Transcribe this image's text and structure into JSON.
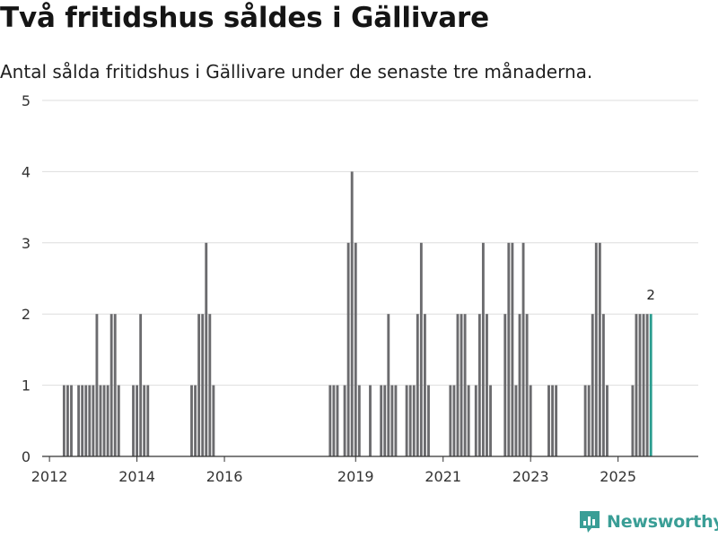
{
  "header": {
    "title": "Två fritidshus såldes i Gällivare",
    "subtitle": "Antal sålda fritidshus i Gällivare under de senaste tre månaderna."
  },
  "brand": {
    "name": "Newsworthy"
  },
  "colors": {
    "bar": "#6b6b6e",
    "highlight": "#2a9d8f",
    "grid": "#dddddd",
    "axis": "#333333",
    "brand": "#3a9e96"
  },
  "chart_data": {
    "type": "bar",
    "title": "Två fritidshus såldes i Gällivare",
    "subtitle": "Antal sålda fritidshus i Gällivare under de senaste tre månaderna.",
    "xlabel": "",
    "ylabel": "",
    "ylim": [
      0,
      5
    ],
    "yticks": [
      "0",
      "1",
      "2",
      "3",
      "4",
      "5"
    ],
    "x_tick_labels": [
      "2012",
      "2014",
      "2016",
      "2019",
      "2021",
      "2023",
      "2025"
    ],
    "x_tick_years": [
      2012,
      2014,
      2016,
      2019,
      2021,
      2023,
      2025
    ],
    "x_start": "2011-11",
    "x_end": "2026-11",
    "series": [
      {
        "name": "Sålda fritidshus",
        "points": [
          [
            "2012-05",
            1
          ],
          [
            "2012-06",
            1
          ],
          [
            "2012-07",
            1
          ],
          [
            "2012-09",
            1
          ],
          [
            "2012-10",
            1
          ],
          [
            "2012-11",
            1
          ],
          [
            "2012-12",
            1
          ],
          [
            "2013-01",
            1
          ],
          [
            "2013-02",
            2
          ],
          [
            "2013-03",
            1
          ],
          [
            "2013-04",
            1
          ],
          [
            "2013-05",
            1
          ],
          [
            "2013-06",
            2
          ],
          [
            "2013-07",
            2
          ],
          [
            "2013-08",
            1
          ],
          [
            "2013-12",
            1
          ],
          [
            "2014-01",
            1
          ],
          [
            "2014-02",
            2
          ],
          [
            "2014-03",
            1
          ],
          [
            "2014-04",
            1
          ],
          [
            "2015-04",
            1
          ],
          [
            "2015-05",
            1
          ],
          [
            "2015-06",
            2
          ],
          [
            "2015-07",
            2
          ],
          [
            "2015-08",
            3
          ],
          [
            "2015-09",
            2
          ],
          [
            "2015-10",
            1
          ],
          [
            "2018-06",
            1
          ],
          [
            "2018-07",
            1
          ],
          [
            "2018-08",
            1
          ],
          [
            "2018-10",
            1
          ],
          [
            "2018-11",
            3
          ],
          [
            "2018-12",
            4
          ],
          [
            "2019-01",
            3
          ],
          [
            "2019-02",
            1
          ],
          [
            "2019-05",
            1
          ],
          [
            "2019-08",
            1
          ],
          [
            "2019-09",
            1
          ],
          [
            "2019-10",
            2
          ],
          [
            "2019-11",
            1
          ],
          [
            "2019-12",
            1
          ],
          [
            "2020-03",
            1
          ],
          [
            "2020-04",
            1
          ],
          [
            "2020-05",
            1
          ],
          [
            "2020-06",
            2
          ],
          [
            "2020-07",
            3
          ],
          [
            "2020-08",
            2
          ],
          [
            "2020-09",
            1
          ],
          [
            "2021-03",
            1
          ],
          [
            "2021-04",
            1
          ],
          [
            "2021-05",
            2
          ],
          [
            "2021-06",
            2
          ],
          [
            "2021-07",
            2
          ],
          [
            "2021-08",
            1
          ],
          [
            "2021-10",
            1
          ],
          [
            "2021-11",
            2
          ],
          [
            "2021-12",
            3
          ],
          [
            "2022-01",
            2
          ],
          [
            "2022-02",
            1
          ],
          [
            "2022-06",
            2
          ],
          [
            "2022-07",
            3
          ],
          [
            "2022-08",
            3
          ],
          [
            "2022-09",
            1
          ],
          [
            "2022-10",
            2
          ],
          [
            "2022-11",
            3
          ],
          [
            "2022-12",
            2
          ],
          [
            "2023-01",
            1
          ],
          [
            "2023-06",
            1
          ],
          [
            "2023-07",
            1
          ],
          [
            "2023-08",
            1
          ],
          [
            "2024-04",
            1
          ],
          [
            "2024-05",
            1
          ],
          [
            "2024-06",
            2
          ],
          [
            "2024-07",
            3
          ],
          [
            "2024-08",
            3
          ],
          [
            "2024-09",
            2
          ],
          [
            "2024-10",
            1
          ],
          [
            "2025-05",
            1
          ],
          [
            "2025-06",
            2
          ],
          [
            "2025-07",
            2
          ],
          [
            "2025-08",
            2
          ],
          [
            "2025-09",
            2
          ],
          [
            "2025-10",
            2
          ]
        ]
      }
    ],
    "highlight": {
      "month": "2025-10",
      "value": 2,
      "label": "2"
    }
  }
}
